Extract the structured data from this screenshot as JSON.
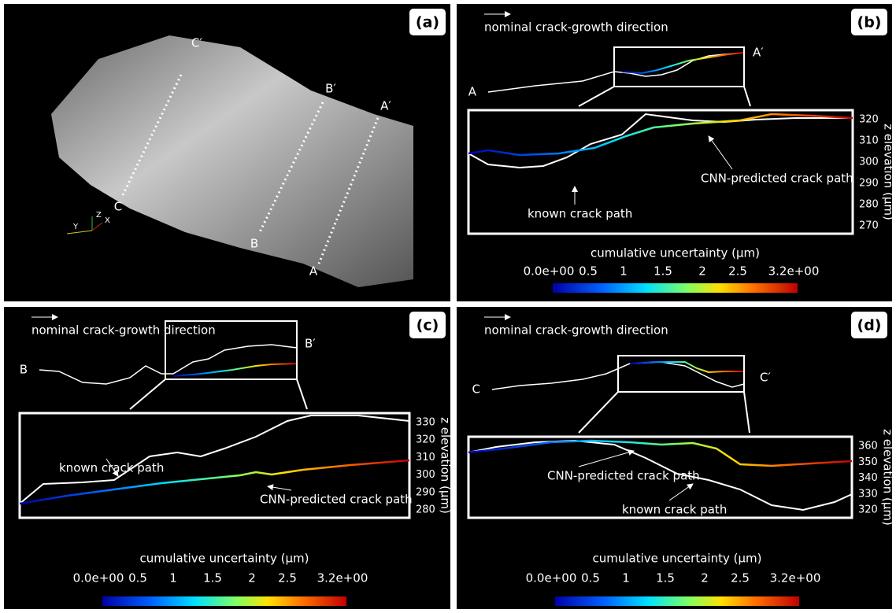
{
  "panels": [
    {
      "label": "(a)",
      "sections": [
        "C′",
        "C",
        "B′",
        "B",
        "A′",
        "A"
      ],
      "axes": [
        "Z",
        "Y",
        "X"
      ]
    },
    {
      "label": "(b)",
      "direction": "nominal crack-growth direction",
      "start": "A",
      "end": "A′",
      "known": "known crack path",
      "predicted": "CNN-predicted crack path",
      "axis_title": "z elevation (µm)",
      "zticks": [
        320,
        310,
        300,
        290,
        280,
        270
      ],
      "colorbar_title": "cumulative uncertainty (µm)",
      "colorbar_ticks": [
        "0.0e+00",
        "0.5",
        "1",
        "1.5",
        "2",
        "2.5",
        "3.2e+00"
      ]
    },
    {
      "label": "(c)",
      "direction": "nominal crack-growth direction",
      "start": "B",
      "end": "B′",
      "known": "known crack path",
      "predicted": "CNN-predicted crack path",
      "axis_title": "z elevation (µm)",
      "zticks": [
        330,
        320,
        310,
        300,
        290,
        280
      ],
      "colorbar_title": "cumulative uncertainty (µm)",
      "colorbar_ticks": [
        "0.0e+00",
        "0.5",
        "1",
        "1.5",
        "2",
        "2.5",
        "3.2e+00"
      ]
    },
    {
      "label": "(d)",
      "direction": "nominal crack-growth direction",
      "start": "C",
      "end": "C′",
      "known": "known crack path",
      "predicted": "CNN-predicted crack path",
      "axis_title": "z elevation (µm)",
      "zticks": [
        360,
        350,
        340,
        330,
        320
      ],
      "colorbar_title": "cumulative uncertainty (µm)",
      "colorbar_ticks": [
        "0.0e+00",
        "0.5",
        "1",
        "1.5",
        "2",
        "2.5",
        "3.2e+00"
      ]
    }
  ]
}
